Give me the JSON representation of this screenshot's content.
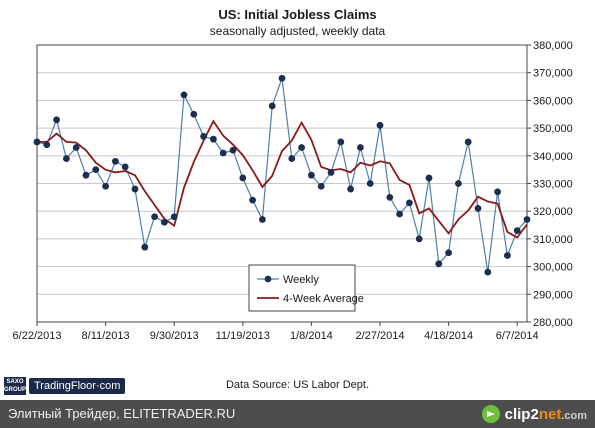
{
  "header": {
    "title": "US: Initial Jobless Claims",
    "subtitle": "seasonally adjusted, weekly data"
  },
  "source": "Data Source: US Labor Dept.",
  "branding": {
    "saxo_text": "SAXO GROUP",
    "tradingfloor": "TradingFloor·com"
  },
  "footer": {
    "left_text": "Элитный Трейдер, ELITETRADER.RU",
    "brand_main": "clip2",
    "brand_accent": "net",
    "brand_suffix": ".com"
  },
  "colors": {
    "weekly": "#4f7fa8",
    "marker": "#1c2f4f",
    "average": "#8b1a1a",
    "grid": "#c8c8c8"
  },
  "chart_data": {
    "type": "line",
    "xlabel": "",
    "ylabel": "",
    "ylim": [
      280000,
      380000
    ],
    "yticks": [
      280000,
      290000,
      300000,
      310000,
      320000,
      330000,
      340000,
      350000,
      360000,
      370000,
      380000
    ],
    "ytick_labels": [
      "280,000",
      "290,000",
      "300,000",
      "310,000",
      "320,000",
      "330,000",
      "340,000",
      "350,000",
      "360,000",
      "370,000",
      "380,000"
    ],
    "xtick_labels": [
      "6/22/2013",
      "8/11/2013",
      "9/30/2013",
      "11/19/2013",
      "1/8/2014",
      "2/27/2014",
      "4/18/2014",
      "6/7/2014"
    ],
    "xtick_index": [
      0,
      7,
      14,
      21,
      28,
      35,
      42,
      49
    ],
    "grid": "horizontal",
    "legend_position": "bottom-center",
    "series": [
      {
        "name": "Weekly",
        "marker": "circle",
        "values": [
          345000,
          344000,
          353000,
          339000,
          343000,
          333000,
          335000,
          329000,
          338000,
          336000,
          328000,
          307000,
          318000,
          316000,
          318000,
          362000,
          355000,
          347000,
          346000,
          341000,
          342000,
          332000,
          324000,
          317000,
          358000,
          368000,
          339000,
          343000,
          333000,
          329000,
          334000,
          345000,
          328000,
          343000,
          330000,
          351000,
          325000,
          319000,
          323000,
          310000,
          332000,
          301000,
          305000,
          330000,
          345000,
          321000,
          298000,
          327000,
          304000,
          313000,
          317000
        ]
      },
      {
        "name": "4-Week Average",
        "marker": "none",
        "values": [
          345000,
          345000,
          348000,
          345000,
          344750,
          342000,
          337500,
          335000,
          334000,
          334500,
          333000,
          327250,
          322250,
          317250,
          314750,
          328500,
          337750,
          345500,
          352500,
          347250,
          344000,
          340250,
          334750,
          328750,
          332750,
          341750,
          345500,
          352000,
          345750,
          336000,
          334750,
          335250,
          334000,
          337500,
          336500,
          338000,
          337250,
          331250,
          329500,
          319250,
          321000,
          316500,
          312000,
          317000,
          320250,
          325250,
          323500,
          322750,
          312500,
          310500,
          315250
        ]
      }
    ]
  }
}
